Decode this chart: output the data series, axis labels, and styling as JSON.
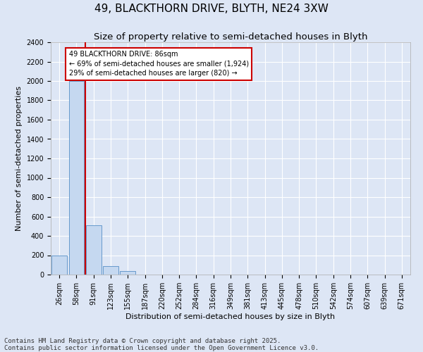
{
  "title": "49, BLACKTHORN DRIVE, BLYTH, NE24 3XW",
  "subtitle": "Size of property relative to semi-detached houses in Blyth",
  "xlabel": "Distribution of semi-detached houses by size in Blyth",
  "ylabel": "Number of semi-detached properties",
  "categories": [
    "26sqm",
    "58sqm",
    "91sqm",
    "123sqm",
    "155sqm",
    "187sqm",
    "220sqm",
    "252sqm",
    "284sqm",
    "316sqm",
    "349sqm",
    "381sqm",
    "413sqm",
    "445sqm",
    "478sqm",
    "510sqm",
    "542sqm",
    "574sqm",
    "607sqm",
    "639sqm",
    "671sqm"
  ],
  "values": [
    200,
    2000,
    510,
    90,
    38,
    0,
    0,
    0,
    0,
    0,
    0,
    0,
    0,
    0,
    0,
    0,
    0,
    0,
    0,
    0,
    0
  ],
  "bar_color": "#c5d8f0",
  "bar_edge_color": "#6699cc",
  "vline_color": "#cc0000",
  "annotation_text": "49 BLACKTHORN DRIVE: 86sqm\n← 69% of semi-detached houses are smaller (1,924)\n29% of semi-detached houses are larger (820) →",
  "annotation_box_color": "#cc0000",
  "ylim": [
    0,
    2400
  ],
  "yticks": [
    0,
    200,
    400,
    600,
    800,
    1000,
    1200,
    1400,
    1600,
    1800,
    2000,
    2200,
    2400
  ],
  "background_color": "#dde6f5",
  "fig_background_color": "#dde6f5",
  "grid_color": "#ffffff",
  "footnote": "Contains HM Land Registry data © Crown copyright and database right 2025.\nContains public sector information licensed under the Open Government Licence v3.0.",
  "title_fontsize": 11,
  "subtitle_fontsize": 9.5,
  "label_fontsize": 8,
  "tick_fontsize": 7,
  "footnote_fontsize": 6.5,
  "vline_xindex": 2
}
